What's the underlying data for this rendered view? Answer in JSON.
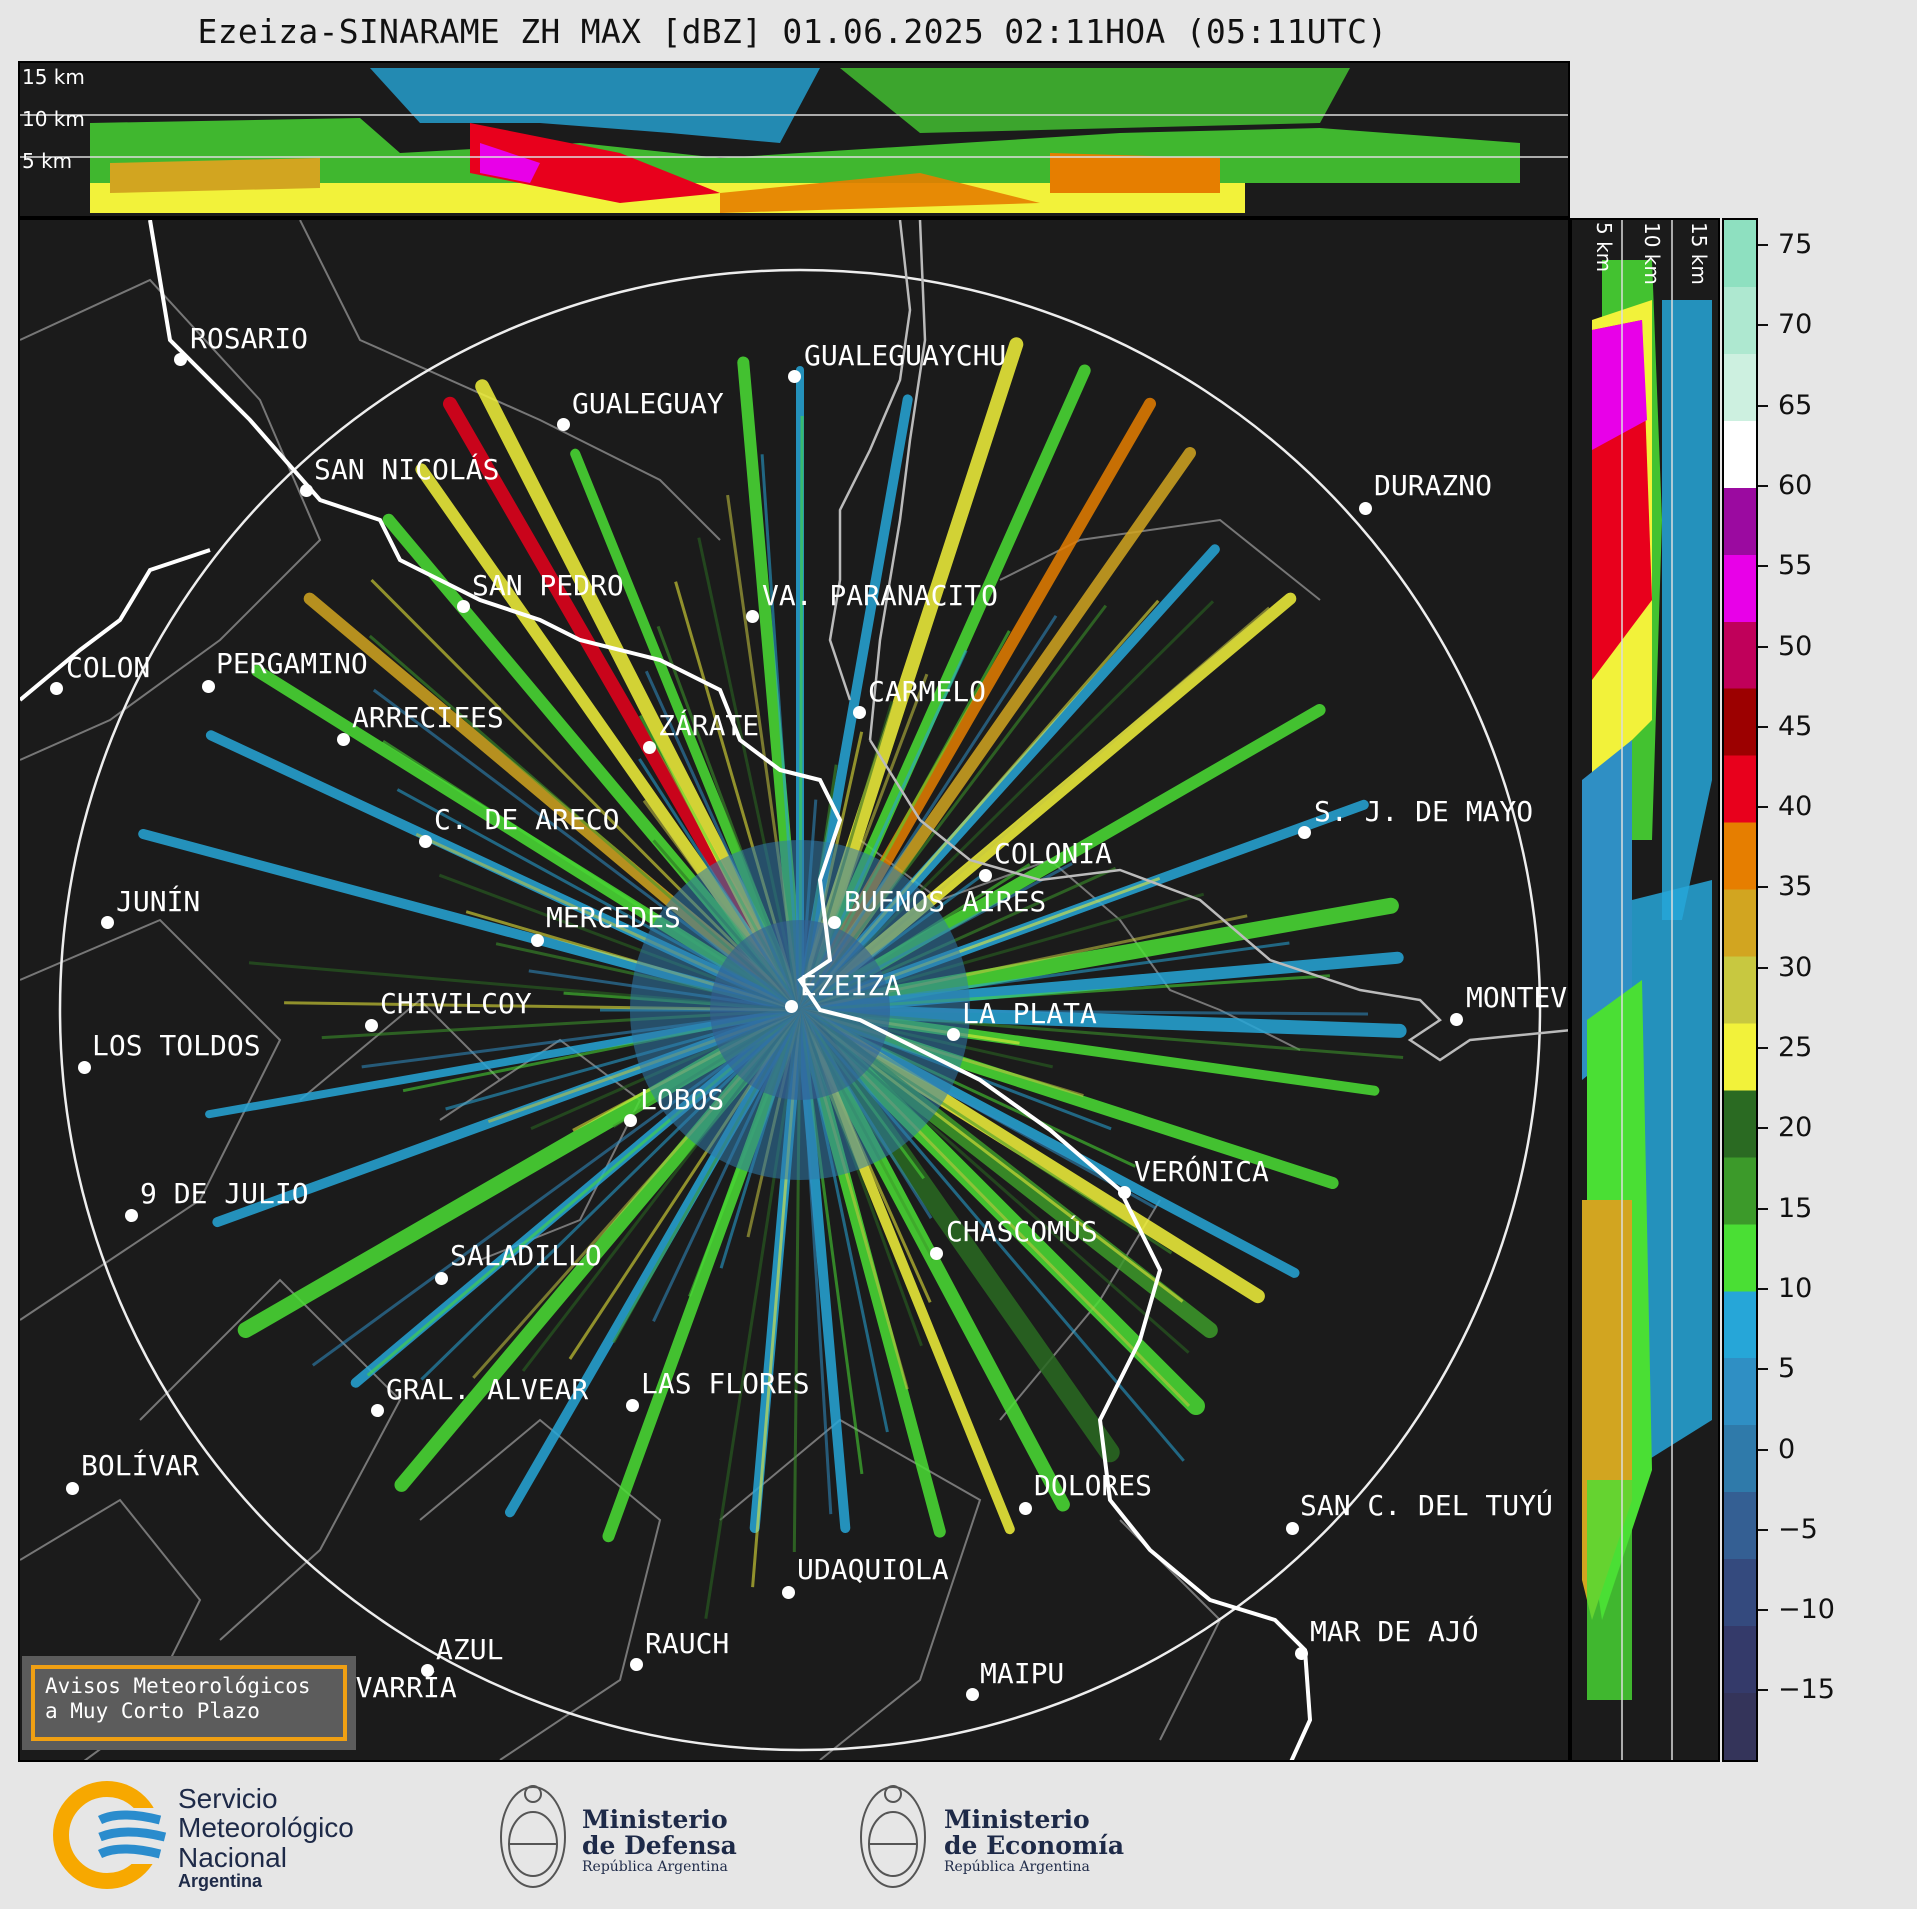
{
  "title": "Ezeiza-SINARAME ZH MAX [dBZ] 01.06.2025 02:11HOA (05:11UTC)",
  "altitude_labels": [
    "15 km",
    "10 km",
    "5 km"
  ],
  "side_altitude_labels": [
    "5 km",
    "10 km",
    "15 km"
  ],
  "cities": [
    {
      "name": "ROSARIO"
    },
    {
      "name": "GUALEGUAYCHU"
    },
    {
      "name": "GUALEGUAY"
    },
    {
      "name": "SAN NICOLÁS"
    },
    {
      "name": "DURAZNO"
    },
    {
      "name": "SAN PEDRO"
    },
    {
      "name": "VA. PARANACITO"
    },
    {
      "name": "COLON"
    },
    {
      "name": "PERGAMINO"
    },
    {
      "name": "CARMELO"
    },
    {
      "name": "ARRECIFES"
    },
    {
      "name": "ZÁRATE"
    },
    {
      "name": "S. J. DE MAYO"
    },
    {
      "name": "C. DE ARECO"
    },
    {
      "name": "COLONIA"
    },
    {
      "name": "JUNÍN"
    },
    {
      "name": "BUENOS AIRES"
    },
    {
      "name": "MERCEDES"
    },
    {
      "name": "EZEIZA"
    },
    {
      "name": "MONTEV"
    },
    {
      "name": "CHIVILCOY"
    },
    {
      "name": "LA PLATA"
    },
    {
      "name": "LOS TOLDOS"
    },
    {
      "name": "LOBOS"
    },
    {
      "name": "VERÓNICA"
    },
    {
      "name": "9 DE JULIO"
    },
    {
      "name": "CHASCOMÚS"
    },
    {
      "name": "SALADILLO"
    },
    {
      "name": "GRAL. ALVEAR"
    },
    {
      "name": "LAS FLORES"
    },
    {
      "name": "BOLÍVAR"
    },
    {
      "name": "DOLORES"
    },
    {
      "name": "SAN C. DEL TUYÚ"
    },
    {
      "name": "UDAQUIOLA"
    },
    {
      "name": "MAR DE AJÓ"
    },
    {
      "name": "AZUL"
    },
    {
      "name": "RAUCH"
    },
    {
      "name": "OLAVARRÍA"
    },
    {
      "name": "MAIPU"
    }
  ],
  "colorbar": {
    "ticks": [
      "75",
      "70",
      "65",
      "60",
      "55",
      "50",
      "45",
      "40",
      "35",
      "30",
      "25",
      "20",
      "15",
      "10",
      "5",
      "0",
      "−5",
      "−10",
      "−15"
    ],
    "colors": [
      "#8ee0c0",
      "#aee8d0",
      "#cdf0e0",
      "#ffffff",
      "#9b0aa0",
      "#e800e8",
      "#c0005a",
      "#9c0000",
      "#e8001c",
      "#e67e00",
      "#d2a520",
      "#c8c840",
      "#f2f23a",
      "#2a6a22",
      "#3c9a2a",
      "#4adf34",
      "#26a6d8",
      "#2f8fc4",
      "#2f7aaa",
      "#345f93",
      "#344a7e",
      "#343a6a",
      "#34345a"
    ]
  },
  "aviso": {
    "line1": "Avisos Meteorológicos",
    "line2": "a Muy Corto Plazo"
  },
  "logos": {
    "smn": {
      "line1": "Servicio",
      "line2": "Meteorológico",
      "line3": "Nacional",
      "line4": "Argentina"
    },
    "defensa": {
      "line1": "Ministerio",
      "line2": "de Defensa",
      "line3": "República Argentina"
    },
    "economia": {
      "line1": "Ministerio",
      "line2": "de Economía",
      "line3": "República Argentina"
    }
  }
}
